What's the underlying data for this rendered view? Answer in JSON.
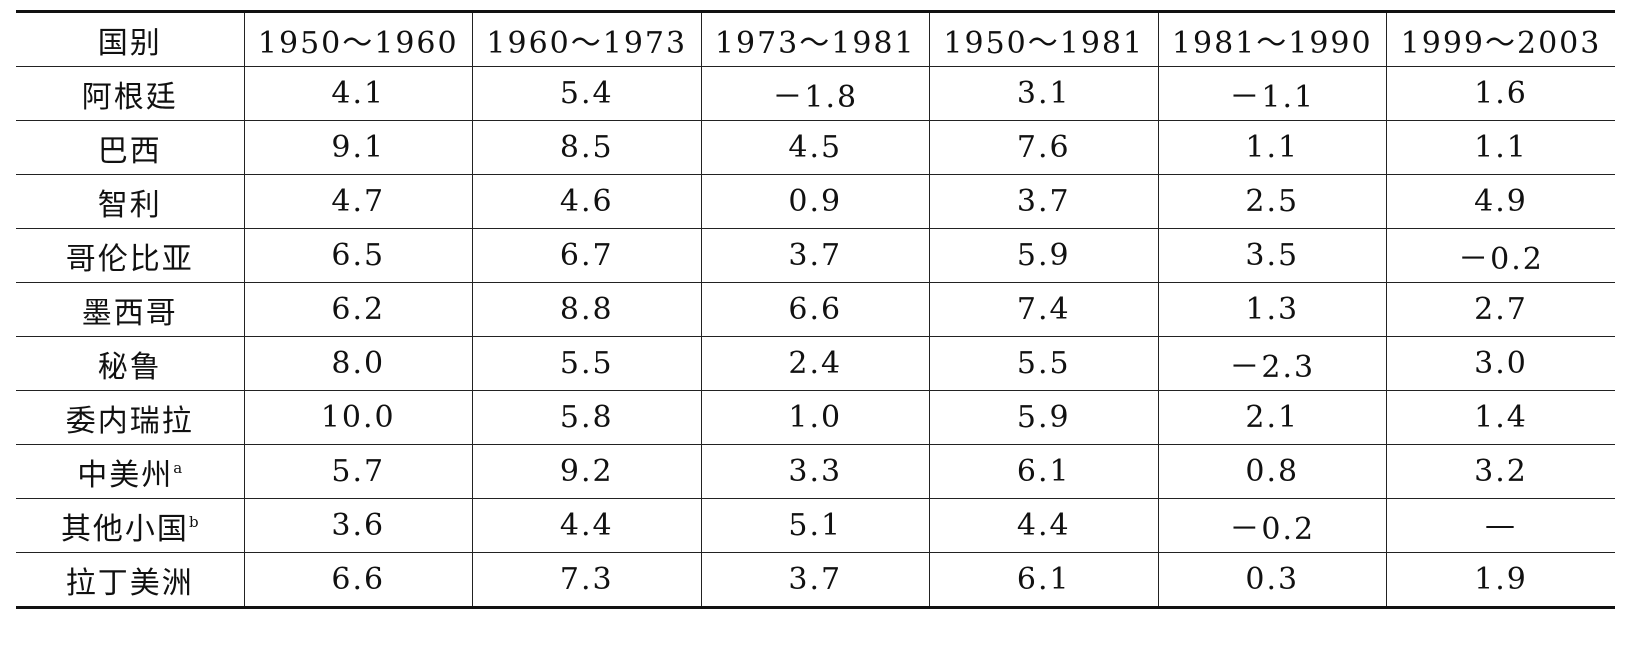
{
  "table": {
    "header": [
      "国别",
      "1950～1960",
      "1960～1973",
      "1973～1981",
      "1950～1981",
      "1981～1990",
      "1999～2003"
    ],
    "rows": [
      {
        "label": "阿根廷",
        "cells": [
          "4.1",
          "5.4",
          "－1.8",
          "3.1",
          "－1.1",
          "1.6"
        ]
      },
      {
        "label": "巴西",
        "cells": [
          "9.1",
          "8.5",
          "4.5",
          "7.6",
          "1.1",
          "1.1"
        ]
      },
      {
        "label": "智利",
        "cells": [
          "4.7",
          "4.6",
          "0.9",
          "3.7",
          "2.5",
          "4.9"
        ]
      },
      {
        "label": "哥伦比亚",
        "cells": [
          "6.5",
          "6.7",
          "3.7",
          "5.9",
          "3.5",
          "－0.2"
        ]
      },
      {
        "label": "墨西哥",
        "cells": [
          "6.2",
          "8.8",
          "6.6",
          "7.4",
          "1.3",
          "2.7"
        ]
      },
      {
        "label": "秘鲁",
        "cells": [
          "8.0",
          "5.5",
          "2.4",
          "5.5",
          "－2.3",
          "3.0"
        ]
      },
      {
        "label": "委内瑞拉",
        "cells": [
          "10.0",
          "5.8",
          "1.0",
          "5.9",
          "2.1",
          "1.4"
        ]
      },
      {
        "label": "中美州",
        "sup": "a",
        "cells": [
          "5.7",
          "9.2",
          "3.3",
          "6.1",
          "0.8",
          "3.2"
        ]
      },
      {
        "label": "其他小国",
        "sup": "b",
        "cells": [
          "3.6",
          "4.4",
          "5.1",
          "4.4",
          "－0.2",
          "—"
        ]
      },
      {
        "label": "拉丁美洲",
        "cells": [
          "6.6",
          "7.3",
          "3.7",
          "6.1",
          "0.3",
          "1.9"
        ]
      }
    ]
  }
}
